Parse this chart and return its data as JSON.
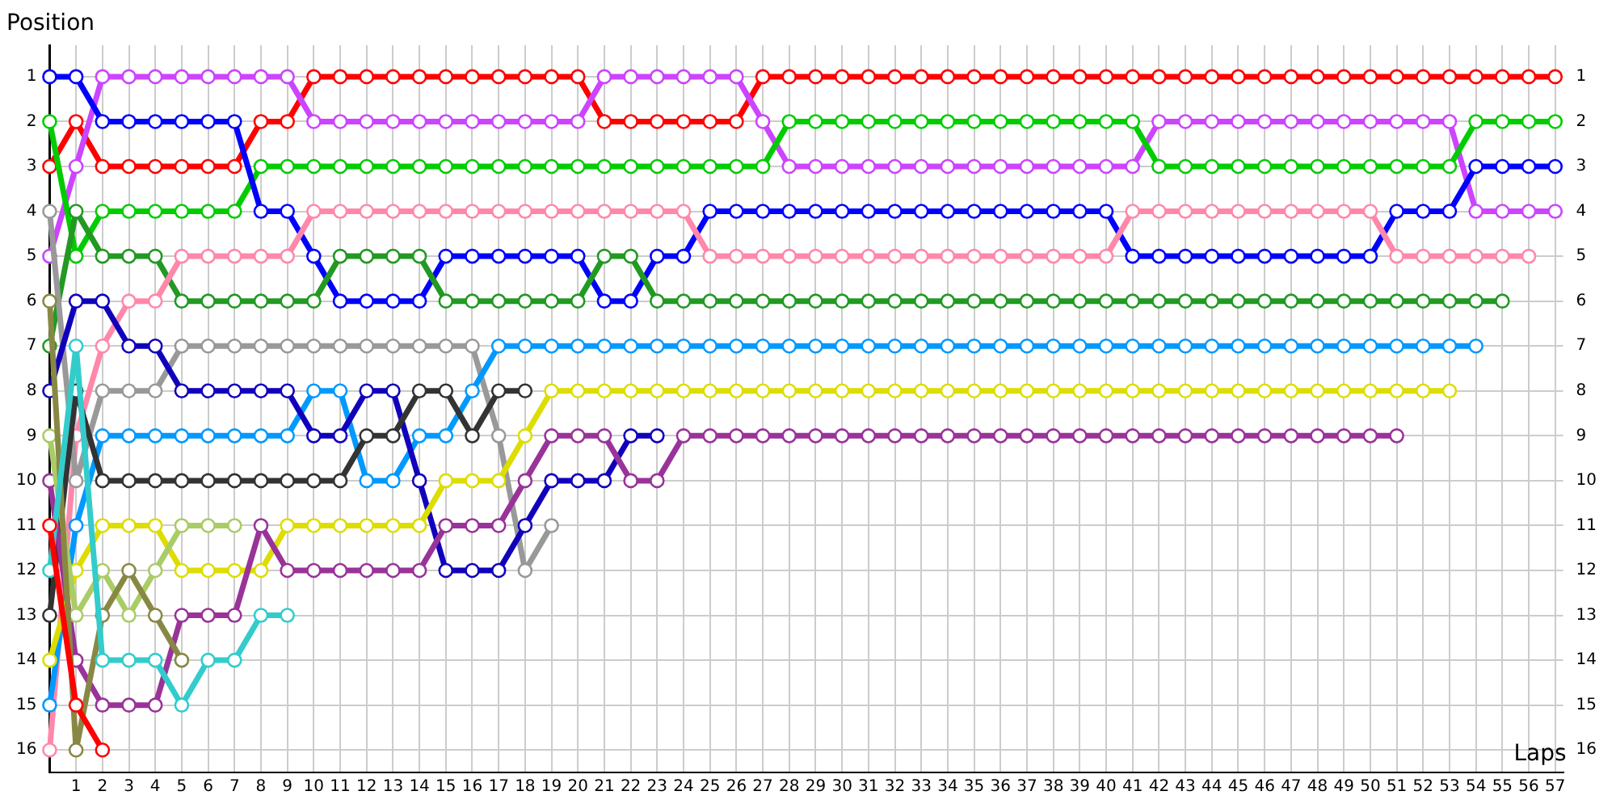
{
  "chart_data": {
    "type": "line",
    "xlabel": "Laps",
    "ylabel": "Position",
    "x": [
      0,
      1,
      2,
      3,
      4,
      5,
      6,
      7,
      8,
      9,
      10,
      11,
      12,
      13,
      14,
      15,
      16,
      17,
      18,
      19,
      20,
      21,
      22,
      23,
      24,
      25,
      26,
      27,
      28,
      29,
      30,
      31,
      32,
      33,
      34,
      35,
      36,
      37,
      38,
      39,
      40,
      41,
      42,
      43,
      44,
      45,
      46,
      47,
      48,
      49,
      50,
      51,
      52,
      53,
      54,
      55,
      56,
      57
    ],
    "xlim": [
      0,
      57.3
    ],
    "xticks": [
      1,
      2,
      3,
      4,
      5,
      6,
      7,
      8,
      9,
      10,
      11,
      12,
      13,
      14,
      15,
      16,
      17,
      18,
      19,
      20,
      21,
      22,
      23,
      24,
      25,
      26,
      27,
      28,
      29,
      30,
      31,
      32,
      33,
      34,
      35,
      36,
      37,
      38,
      39,
      40,
      41,
      42,
      43,
      44,
      45,
      46,
      47,
      48,
      49,
      50,
      51,
      52,
      53,
      54,
      55,
      56,
      57
    ],
    "ylim": [
      16.5,
      0.3
    ],
    "yticks": [
      1,
      2,
      3,
      4,
      5,
      6,
      7,
      8,
      9,
      10,
      11,
      12,
      13,
      14,
      15,
      16
    ],
    "y2lim": [
      16.5,
      0.3
    ],
    "y2ticks": [
      1,
      2,
      3,
      4,
      5,
      6,
      7,
      8,
      9,
      10,
      11,
      12,
      13,
      14,
      15,
      16
    ],
    "grid": true,
    "legend": false,
    "marker": "circle",
    "line_style": "solid",
    "series": [
      {
        "color": "#ff0000",
        "values": [
          3,
          2,
          3,
          3,
          3,
          3,
          3,
          3,
          2,
          2,
          1,
          1,
          1,
          1,
          1,
          1,
          1,
          1,
          1,
          1,
          1,
          2,
          2,
          2,
          2,
          2,
          2,
          1,
          1,
          1,
          1,
          1,
          1,
          1,
          1,
          1,
          1,
          1,
          1,
          1,
          1,
          1,
          1,
          1,
          1,
          1,
          1,
          1,
          1,
          1,
          1,
          1,
          1,
          1,
          1,
          1,
          1,
          1
        ]
      },
      {
        "color": "#cc44ff",
        "values": [
          5,
          3,
          1,
          1,
          1,
          1,
          1,
          1,
          1,
          1,
          2,
          2,
          2,
          2,
          2,
          2,
          2,
          2,
          2,
          2,
          2,
          1,
          1,
          1,
          1,
          1,
          1,
          2,
          3,
          3,
          3,
          3,
          3,
          3,
          3,
          3,
          3,
          3,
          3,
          3,
          3,
          3,
          2,
          2,
          2,
          2,
          2,
          2,
          2,
          2,
          2,
          2,
          2,
          2,
          4,
          4,
          4,
          4
        ]
      },
      {
        "color": "#00cc00",
        "values": [
          2,
          5,
          4,
          4,
          4,
          4,
          4,
          4,
          3,
          3,
          3,
          3,
          3,
          3,
          3,
          3,
          3,
          3,
          3,
          3,
          3,
          3,
          3,
          3,
          3,
          3,
          3,
          3,
          2,
          2,
          2,
          2,
          2,
          2,
          2,
          2,
          2,
          2,
          2,
          2,
          2,
          2,
          3,
          3,
          3,
          3,
          3,
          3,
          3,
          3,
          3,
          3,
          3,
          3,
          2,
          2,
          2,
          2
        ]
      },
      {
        "color": "#0000ff",
        "values": [
          1,
          1,
          2,
          2,
          2,
          2,
          2,
          2,
          4,
          4,
          5,
          6,
          6,
          6,
          6,
          5,
          5,
          5,
          5,
          5,
          5,
          6,
          6,
          5,
          5,
          4,
          4,
          4,
          4,
          4,
          4,
          4,
          4,
          4,
          4,
          4,
          4,
          4,
          4,
          4,
          4,
          5,
          5,
          5,
          5,
          5,
          5,
          5,
          5,
          5,
          5,
          4,
          4,
          4,
          3,
          3,
          3,
          3
        ]
      },
      {
        "color": "#229922",
        "values": [
          7,
          4,
          5,
          5,
          5,
          6,
          6,
          6,
          6,
          6,
          6,
          5,
          5,
          5,
          5,
          6,
          6,
          6,
          6,
          6,
          6,
          5,
          5,
          6,
          6,
          6,
          6,
          6,
          6,
          6,
          6,
          6,
          6,
          6,
          6,
          6,
          6,
          6,
          6,
          6,
          6,
          6,
          6,
          6,
          6,
          6,
          6,
          6,
          6,
          6,
          6,
          6,
          6,
          6,
          6,
          6,
          null,
          null
        ]
      },
      {
        "color": "#ff88aa",
        "values": [
          16,
          9,
          7,
          6,
          6,
          5,
          5,
          5,
          5,
          5,
          4,
          4,
          4,
          4,
          4,
          4,
          4,
          4,
          4,
          4,
          4,
          4,
          4,
          4,
          4,
          5,
          5,
          5,
          5,
          5,
          5,
          5,
          5,
          5,
          5,
          5,
          5,
          5,
          5,
          5,
          5,
          4,
          4,
          4,
          4,
          4,
          4,
          4,
          4,
          4,
          4,
          5,
          5,
          5,
          5,
          5,
          5,
          null
        ]
      },
      {
        "color": "#999999",
        "values": [
          4,
          10,
          8,
          8,
          8,
          7,
          7,
          7,
          7,
          7,
          7,
          7,
          7,
          7,
          7,
          7,
          7,
          9,
          12,
          11,
          null,
          null,
          null,
          null,
          null,
          null,
          null,
          null,
          null,
          null,
          null,
          null,
          null,
          null,
          null,
          null,
          null,
          null,
          null,
          null,
          null,
          null,
          null,
          null,
          null,
          null,
          null,
          null,
          null,
          null,
          null,
          null,
          null,
          null,
          null,
          null,
          null,
          null
        ]
      },
      {
        "color": "#0099ff",
        "values": [
          15,
          11,
          9,
          9,
          9,
          9,
          9,
          9,
          9,
          9,
          8,
          8,
          10,
          10,
          9,
          9,
          8,
          7,
          7,
          7,
          7,
          7,
          7,
          7,
          7,
          7,
          7,
          7,
          7,
          7,
          7,
          7,
          7,
          7,
          7,
          7,
          7,
          7,
          7,
          7,
          7,
          7,
          7,
          7,
          7,
          7,
          7,
          7,
          7,
          7,
          7,
          7,
          7,
          7,
          7,
          null,
          null,
          null
        ]
      },
      {
        "color": "#1100bb",
        "values": [
          8,
          6,
          6,
          7,
          7,
          8,
          8,
          8,
          8,
          8,
          9,
          9,
          8,
          8,
          10,
          12,
          12,
          12,
          11,
          10,
          10,
          10,
          9,
          9,
          null,
          null,
          null,
          null,
          null,
          null,
          null,
          null,
          null,
          null,
          null,
          null,
          null,
          null,
          null,
          null,
          null,
          null,
          null,
          null,
          null,
          null,
          null,
          null,
          null,
          null,
          null,
          null,
          null,
          null,
          null,
          null,
          null,
          null
        ]
      },
      {
        "color": "#333333",
        "values": [
          13,
          8,
          10,
          10,
          10,
          10,
          10,
          10,
          10,
          10,
          10,
          10,
          9,
          9,
          8,
          8,
          9,
          8,
          8,
          null,
          null,
          null,
          null,
          null,
          null,
          null,
          null,
          null,
          null,
          null,
          null,
          null,
          null,
          null,
          null,
          null,
          null,
          null,
          null,
          null,
          null,
          null,
          null,
          null,
          null,
          null,
          null,
          null,
          null,
          null,
          null,
          null,
          null,
          null,
          null,
          null,
          null,
          null
        ]
      },
      {
        "color": "#dddd00",
        "values": [
          14,
          12,
          11,
          11,
          11,
          12,
          12,
          12,
          12,
          11,
          11,
          11,
          11,
          11,
          11,
          10,
          10,
          10,
          9,
          8,
          8,
          8,
          8,
          8,
          8,
          8,
          8,
          8,
          8,
          8,
          8,
          8,
          8,
          8,
          8,
          8,
          8,
          8,
          8,
          8,
          8,
          8,
          8,
          8,
          8,
          8,
          8,
          8,
          8,
          8,
          8,
          8,
          8,
          8,
          null,
          null,
          null,
          null
        ]
      },
      {
        "color": "#993399",
        "values": [
          10,
          14,
          15,
          15,
          15,
          13,
          13,
          13,
          11,
          12,
          12,
          12,
          12,
          12,
          12,
          11,
          11,
          11,
          10,
          9,
          9,
          9,
          10,
          10,
          9,
          9,
          9,
          9,
          9,
          9,
          9,
          9,
          9,
          9,
          9,
          9,
          9,
          9,
          9,
          9,
          9,
          9,
          9,
          9,
          9,
          9,
          9,
          9,
          9,
          9,
          9,
          9,
          null,
          null,
          null,
          null,
          null,
          null
        ]
      },
      {
        "color": "#aacc66",
        "values": [
          9,
          13,
          12,
          13,
          12,
          11,
          11,
          11,
          null,
          null,
          null,
          null,
          null,
          null,
          null,
          null,
          null,
          null,
          null,
          null,
          null,
          null,
          null,
          null,
          null,
          null,
          null,
          null,
          null,
          null,
          null,
          null,
          null,
          null,
          null,
          null,
          null,
          null,
          null,
          null,
          null,
          null,
          null,
          null,
          null,
          null,
          null,
          null,
          null,
          null,
          null,
          null,
          null,
          null,
          null,
          null,
          null,
          null
        ]
      },
      {
        "color": "#888844",
        "values": [
          6,
          16,
          13,
          12,
          13,
          14,
          null,
          null,
          null,
          null,
          null,
          null,
          null,
          null,
          null,
          null,
          null,
          null,
          null,
          null,
          null,
          null,
          null,
          null,
          null,
          null,
          null,
          null,
          null,
          null,
          null,
          null,
          null,
          null,
          null,
          null,
          null,
          null,
          null,
          null,
          null,
          null,
          null,
          null,
          null,
          null,
          null,
          null,
          null,
          null,
          null,
          null,
          null,
          null,
          null,
          null,
          null,
          null
        ]
      },
      {
        "color": "#33cccc",
        "values": [
          12,
          7,
          14,
          14,
          14,
          15,
          14,
          14,
          13,
          13,
          null,
          null,
          null,
          null,
          null,
          null,
          null,
          null,
          null,
          null,
          null,
          null,
          null,
          null,
          null,
          null,
          null,
          null,
          null,
          null,
          null,
          null,
          null,
          null,
          null,
          null,
          null,
          null,
          null,
          null,
          null,
          null,
          null,
          null,
          null,
          null,
          null,
          null,
          null,
          null,
          null,
          null,
          null,
          null,
          null,
          null,
          null,
          null
        ]
      },
      {
        "color": "#ff0000",
        "values": [
          11,
          15,
          16,
          null,
          null,
          null,
          null,
          null,
          null,
          null,
          null,
          null,
          null,
          null,
          null,
          null,
          null,
          null,
          null,
          null,
          null,
          null,
          null,
          null,
          null,
          null,
          null,
          null,
          null,
          null,
          null,
          null,
          null,
          null,
          null,
          null,
          null,
          null,
          null,
          null,
          null,
          null,
          null,
          null,
          null,
          null,
          null,
          null,
          null,
          null,
          null,
          null,
          null,
          null,
          null,
          null,
          null,
          null
        ]
      }
    ]
  }
}
